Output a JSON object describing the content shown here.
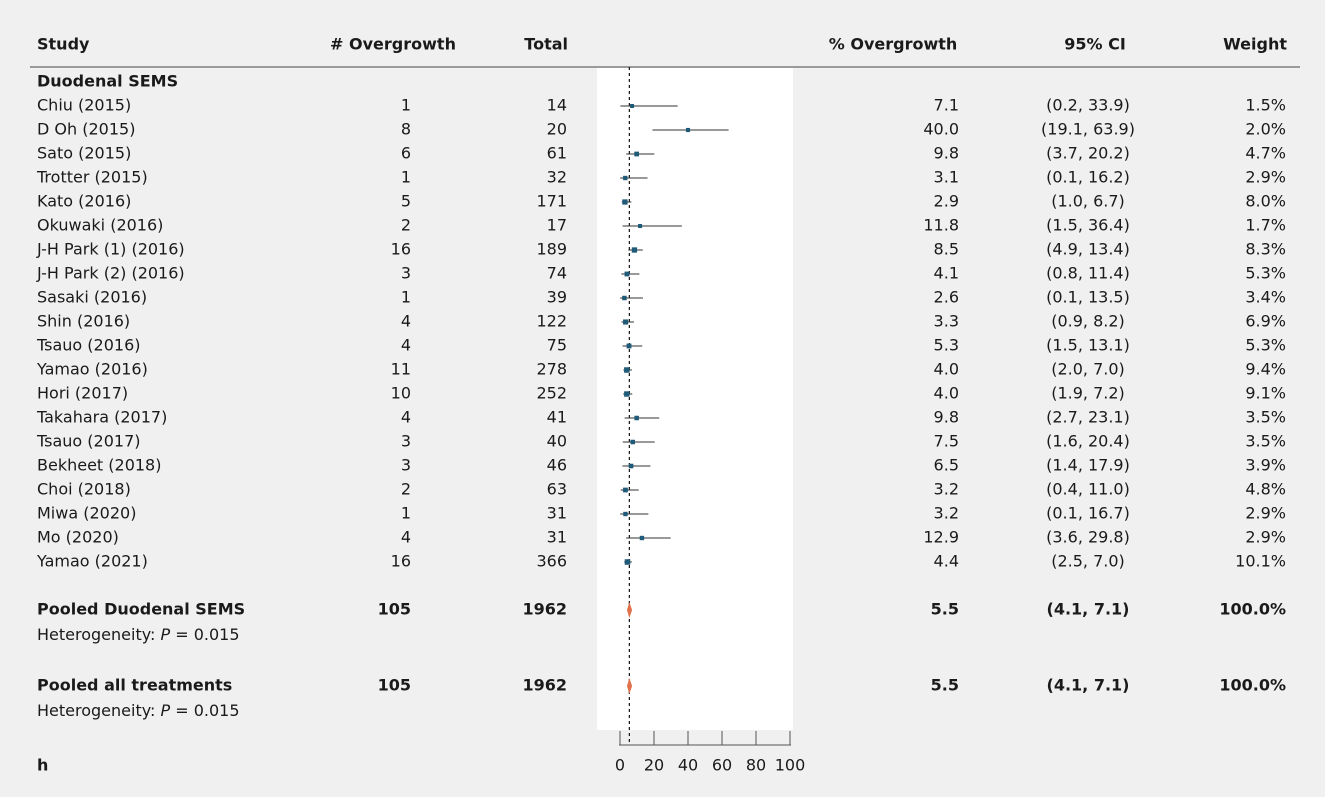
{
  "chart_data": {
    "type": "forest",
    "columns": {
      "study": "Study",
      "events": "# Overgrowth",
      "total": "Total",
      "estimate": "% Overgrowth",
      "ci": "95% CI",
      "weight": "Weight"
    },
    "group": "Duodenal SEMS",
    "studies": [
      {
        "name": "Chiu (2015)",
        "events": 1,
        "total": 14,
        "estimate": 7.1,
        "estimate_label": "7.1",
        "ci": [
          0.2,
          33.9
        ],
        "ci_label": "(0.2, 33.9)",
        "weight": 1.5,
        "weight_label": "1.5%"
      },
      {
        "name": "D Oh (2015)",
        "events": 8,
        "total": 20,
        "estimate": 40,
        "estimate_label": "40.0",
        "ci": [
          19.1,
          63.9
        ],
        "ci_label": "(19.1, 63.9)",
        "weight": 2,
        "weight_label": "2.0%"
      },
      {
        "name": "Sato (2015)",
        "events": 6,
        "total": 61,
        "estimate": 9.8,
        "estimate_label": "9.8",
        "ci": [
          3.7,
          20.2
        ],
        "ci_label": "(3.7, 20.2)",
        "weight": 4.7,
        "weight_label": "4.7%"
      },
      {
        "name": "Trotter (2015)",
        "events": 1,
        "total": 32,
        "estimate": 3.1,
        "estimate_label": "3.1",
        "ci": [
          0.1,
          16.2
        ],
        "ci_label": "(0.1, 16.2)",
        "weight": 2.9,
        "weight_label": "2.9%"
      },
      {
        "name": "Kato (2016)",
        "events": 5,
        "total": 171,
        "estimate": 2.9,
        "estimate_label": "2.9",
        "ci": [
          1.0,
          6.7
        ],
        "ci_label": "(1.0, 6.7)",
        "weight": 8,
        "weight_label": "8.0%"
      },
      {
        "name": "Okuwaki (2016)",
        "events": 2,
        "total": 17,
        "estimate": 11.8,
        "estimate_label": "11.8",
        "ci": [
          1.5,
          36.4
        ],
        "ci_label": "(1.5, 36.4)",
        "weight": 1.7,
        "weight_label": "1.7%"
      },
      {
        "name": "J-H Park (1) (2016)",
        "events": 16,
        "total": 189,
        "estimate": 8.5,
        "estimate_label": "8.5",
        "ci": [
          4.9,
          13.4
        ],
        "ci_label": "(4.9, 13.4)",
        "weight": 8.3,
        "weight_label": "8.3%"
      },
      {
        "name": "J-H Park (2) (2016)",
        "events": 3,
        "total": 74,
        "estimate": 4.1,
        "estimate_label": "4.1",
        "ci": [
          0.8,
          11.4
        ],
        "ci_label": "(0.8, 11.4)",
        "weight": 5.3,
        "weight_label": "5.3%"
      },
      {
        "name": "Sasaki (2016)",
        "events": 1,
        "total": 39,
        "estimate": 2.6,
        "estimate_label": "2.6",
        "ci": [
          0.1,
          13.5
        ],
        "ci_label": "(0.1, 13.5)",
        "weight": 3.4,
        "weight_label": "3.4%"
      },
      {
        "name": "Shin (2016)",
        "events": 4,
        "total": 122,
        "estimate": 3.3,
        "estimate_label": "3.3",
        "ci": [
          0.9,
          8.2
        ],
        "ci_label": "(0.9, 8.2)",
        "weight": 6.9,
        "weight_label": "6.9%"
      },
      {
        "name": "Tsauo (2016)",
        "events": 4,
        "total": 75,
        "estimate": 5.3,
        "estimate_label": "5.3",
        "ci": [
          1.5,
          13.1
        ],
        "ci_label": "(1.5, 13.1)",
        "weight": 5.3,
        "weight_label": "5.3%"
      },
      {
        "name": "Yamao (2016)",
        "events": 11,
        "total": 278,
        "estimate": 4,
        "estimate_label": "4.0",
        "ci": [
          2.0,
          7.0
        ],
        "ci_label": "(2.0, 7.0)",
        "weight": 9.4,
        "weight_label": "9.4%"
      },
      {
        "name": "Hori (2017)",
        "events": 10,
        "total": 252,
        "estimate": 4,
        "estimate_label": "4.0",
        "ci": [
          1.9,
          7.2
        ],
        "ci_label": "(1.9, 7.2)",
        "weight": 9.1,
        "weight_label": "9.1%"
      },
      {
        "name": "Takahara (2017)",
        "events": 4,
        "total": 41,
        "estimate": 9.8,
        "estimate_label": "9.8",
        "ci": [
          2.7,
          23.1
        ],
        "ci_label": "(2.7, 23.1)",
        "weight": 3.5,
        "weight_label": "3.5%"
      },
      {
        "name": "Tsauo (2017)",
        "events": 3,
        "total": 40,
        "estimate": 7.5,
        "estimate_label": "7.5",
        "ci": [
          1.6,
          20.4
        ],
        "ci_label": "(1.6, 20.4)",
        "weight": 3.5,
        "weight_label": "3.5%"
      },
      {
        "name": "Bekheet (2018)",
        "events": 3,
        "total": 46,
        "estimate": 6.5,
        "estimate_label": "6.5",
        "ci": [
          1.4,
          17.9
        ],
        "ci_label": "(1.4, 17.9)",
        "weight": 3.9,
        "weight_label": "3.9%"
      },
      {
        "name": "Choi (2018)",
        "events": 2,
        "total": 63,
        "estimate": 3.2,
        "estimate_label": "3.2",
        "ci": [
          0.4,
          11.0
        ],
        "ci_label": "(0.4, 11.0)",
        "weight": 4.8,
        "weight_label": "4.8%"
      },
      {
        "name": "Miwa (2020)",
        "events": 1,
        "total": 31,
        "estimate": 3.2,
        "estimate_label": "3.2",
        "ci": [
          0.1,
          16.7
        ],
        "ci_label": "(0.1, 16.7)",
        "weight": 2.9,
        "weight_label": "2.9%"
      },
      {
        "name": "Mo (2020)",
        "events": 4,
        "total": 31,
        "estimate": 12.9,
        "estimate_label": "12.9",
        "ci": [
          3.6,
          29.8
        ],
        "ci_label": "(3.6, 29.8)",
        "weight": 2.9,
        "weight_label": "2.9%"
      },
      {
        "name": "Yamao (2021)",
        "events": 16,
        "total": 366,
        "estimate": 4.4,
        "estimate_label": "4.4",
        "ci": [
          2.5,
          7.0
        ],
        "ci_label": "(2.5, 7.0)",
        "weight": 10.1,
        "weight_label": "10.1%"
      }
    ],
    "pooled": [
      {
        "name": "Pooled Duodenal SEMS",
        "events": 105,
        "total": 1962,
        "estimate": 5.5,
        "estimate_label": "5.5",
        "ci": [
          4.1,
          7.1
        ],
        "ci_label": "(4.1, 7.1)",
        "weight": 100,
        "weight_label": "100.0%",
        "heterogeneity": [
          "Heterogeneity: ",
          "P",
          " = 0.015"
        ]
      },
      {
        "name": "Pooled all treatments",
        "events": 105,
        "total": 1962,
        "estimate": 5.5,
        "estimate_label": "5.5",
        "ci": [
          4.1,
          7.1
        ],
        "ci_label": "(4.1, 7.1)",
        "weight": 100,
        "weight_label": "100.0%",
        "heterogeneity": [
          "Heterogeneity: ",
          "P",
          " = 0.015"
        ]
      }
    ],
    "xlim": [
      0,
      100
    ],
    "xticks": [
      0,
      20,
      40,
      60,
      80,
      100
    ],
    "marker_color": "#1f5a78",
    "pooled_color": "#e0714a",
    "panel_label": "h"
  }
}
